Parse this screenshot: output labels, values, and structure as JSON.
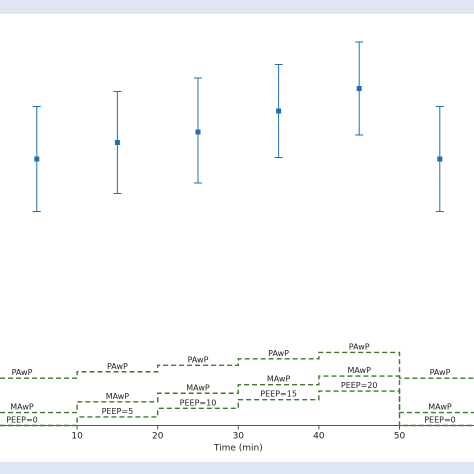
{
  "chart_data": [
    {
      "type": "scatter",
      "title": "",
      "xlabel": "",
      "ylabel": "",
      "grid": false,
      "legend": "none",
      "marker_color": "#1f6fb2",
      "points": [
        {
          "x": 5,
          "y": 0,
          "err_low": 1.75,
          "err_high": 1.75
        },
        {
          "x": 15,
          "y": 0.55,
          "err_low": 1.7,
          "err_high": 1.7
        },
        {
          "x": 25,
          "y": 0.9,
          "err_low": 1.7,
          "err_high": 1.8
        },
        {
          "x": 35,
          "y": 1.6,
          "err_low": 1.55,
          "err_high": 1.55
        },
        {
          "x": 45,
          "y": 2.35,
          "err_low": 1.55,
          "err_high": 1.55
        },
        {
          "x": 55,
          "y": 0,
          "err_low": 1.75,
          "err_high": 1.75
        }
      ]
    },
    {
      "type": "line",
      "xlabel": "Time (min)",
      "xticks": [
        10,
        20,
        30,
        40,
        50
      ],
      "xlim": [
        0.5,
        59.5
      ],
      "line_color": "#3d7a2a",
      "line_style": "dashed",
      "series": [
        {
          "key": "PAwP",
          "segments": [
            {
              "x0": 0,
              "x1": 10,
              "y": 11,
              "label": "PAwP"
            },
            {
              "x0": 10,
              "x1": 20,
              "y": 12.5,
              "label": "PAwP"
            },
            {
              "x0": 20,
              "x1": 30,
              "y": 14,
              "label": "PAwP"
            },
            {
              "x0": 30,
              "x1": 40,
              "y": 15.5,
              "label": "PAwP"
            },
            {
              "x0": 40,
              "x1": 50,
              "y": 17,
              "label": "PAwP"
            },
            {
              "x0": 50,
              "x1": 60,
              "y": 11,
              "label": "PAwP"
            }
          ]
        },
        {
          "key": "MAwP",
          "segments": [
            {
              "x0": 0,
              "x1": 10,
              "y": 3,
              "label": "MAwP"
            },
            {
              "x0": 10,
              "x1": 20,
              "y": 5.5,
              "label": "MAwP"
            },
            {
              "x0": 20,
              "x1": 30,
              "y": 7.5,
              "label": "MAwP"
            },
            {
              "x0": 30,
              "x1": 40,
              "y": 9.5,
              "label": "MAwP"
            },
            {
              "x0": 40,
              "x1": 50,
              "y": 11.5,
              "label": "MAwP"
            },
            {
              "x0": 50,
              "x1": 60,
              "y": 3,
              "label": "MAwP"
            }
          ]
        },
        {
          "key": "PEEP",
          "segments": [
            {
              "x0": 0,
              "x1": 10,
              "y": 0,
              "label": "PEEP=0"
            },
            {
              "x0": 10,
              "x1": 20,
              "y": 2,
              "label": "PEEP=5"
            },
            {
              "x0": 20,
              "x1": 30,
              "y": 4,
              "label": "PEEP=10"
            },
            {
              "x0": 30,
              "x1": 40,
              "y": 6,
              "label": "PEEP=15"
            },
            {
              "x0": 40,
              "x1": 50,
              "y": 8,
              "label": "PEEP=20"
            },
            {
              "x0": 50,
              "x1": 60,
              "y": 0,
              "label": "PEEP=0"
            }
          ]
        }
      ]
    }
  ]
}
